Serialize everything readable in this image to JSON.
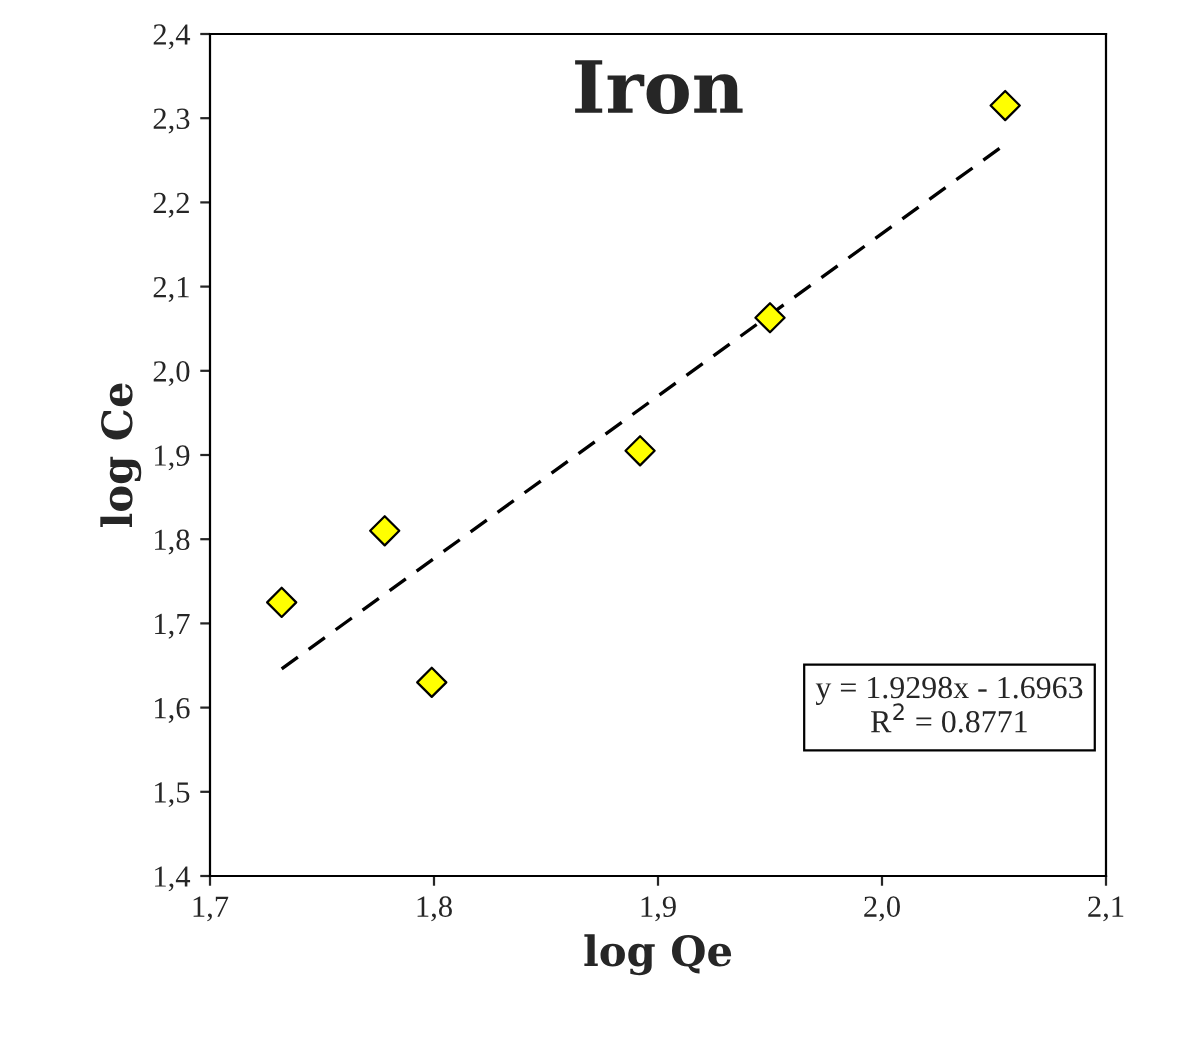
{
  "chart_data": {
    "type": "scatter",
    "title": "Iron",
    "xlabel": "log Qe",
    "ylabel": "log Ce",
    "series": [
      {
        "color": "#ffff00",
        "marker": "diamond",
        "x": [
          1.732,
          1.778,
          1.799,
          1.892,
          1.95,
          2.055
        ],
        "values": [
          1.725,
          1.81,
          1.63,
          1.905,
          2.063,
          2.315
        ]
      },
      {
        "type": "line",
        "color": "#000000",
        "line_style": "dashed",
        "marker": "none",
        "x": [
          1.732,
          2.055
        ],
        "values": [
          1.646,
          2.269
        ]
      }
    ],
    "annotations": [
      "y = 1.9298x - 1.6963\nR$^{2}$ = 0.8771"
    ],
    "xlim": [
      1.7,
      2.1
    ],
    "ylim": [
      1.4,
      2.4
    ],
    "xticks": [
      {
        "value": 1.7,
        "label": "1,7"
      },
      {
        "value": 1.8,
        "label": "1,8"
      },
      {
        "value": 1.9,
        "label": "1,9"
      },
      {
        "value": 2.0,
        "label": "2,0"
      },
      {
        "value": 2.1,
        "label": "2,1"
      }
    ],
    "yticks": [
      {
        "value": 1.4,
        "label": "1,4"
      },
      {
        "value": 1.5,
        "label": "1,5"
      },
      {
        "value": 1.6,
        "label": "1,6"
      },
      {
        "value": 1.7,
        "label": "1,7"
      },
      {
        "value": 1.8,
        "label": "1,8"
      },
      {
        "value": 1.9,
        "label": "1,9"
      },
      {
        "value": 2.0,
        "label": "2,0"
      },
      {
        "value": 2.1,
        "label": "2,1"
      },
      {
        "value": 2.2,
        "label": "2,2"
      },
      {
        "value": 2.3,
        "label": "2,3"
      },
      {
        "value": 2.4,
        "label": "2,4"
      }
    ],
    "grid": false,
    "legend": false
  }
}
